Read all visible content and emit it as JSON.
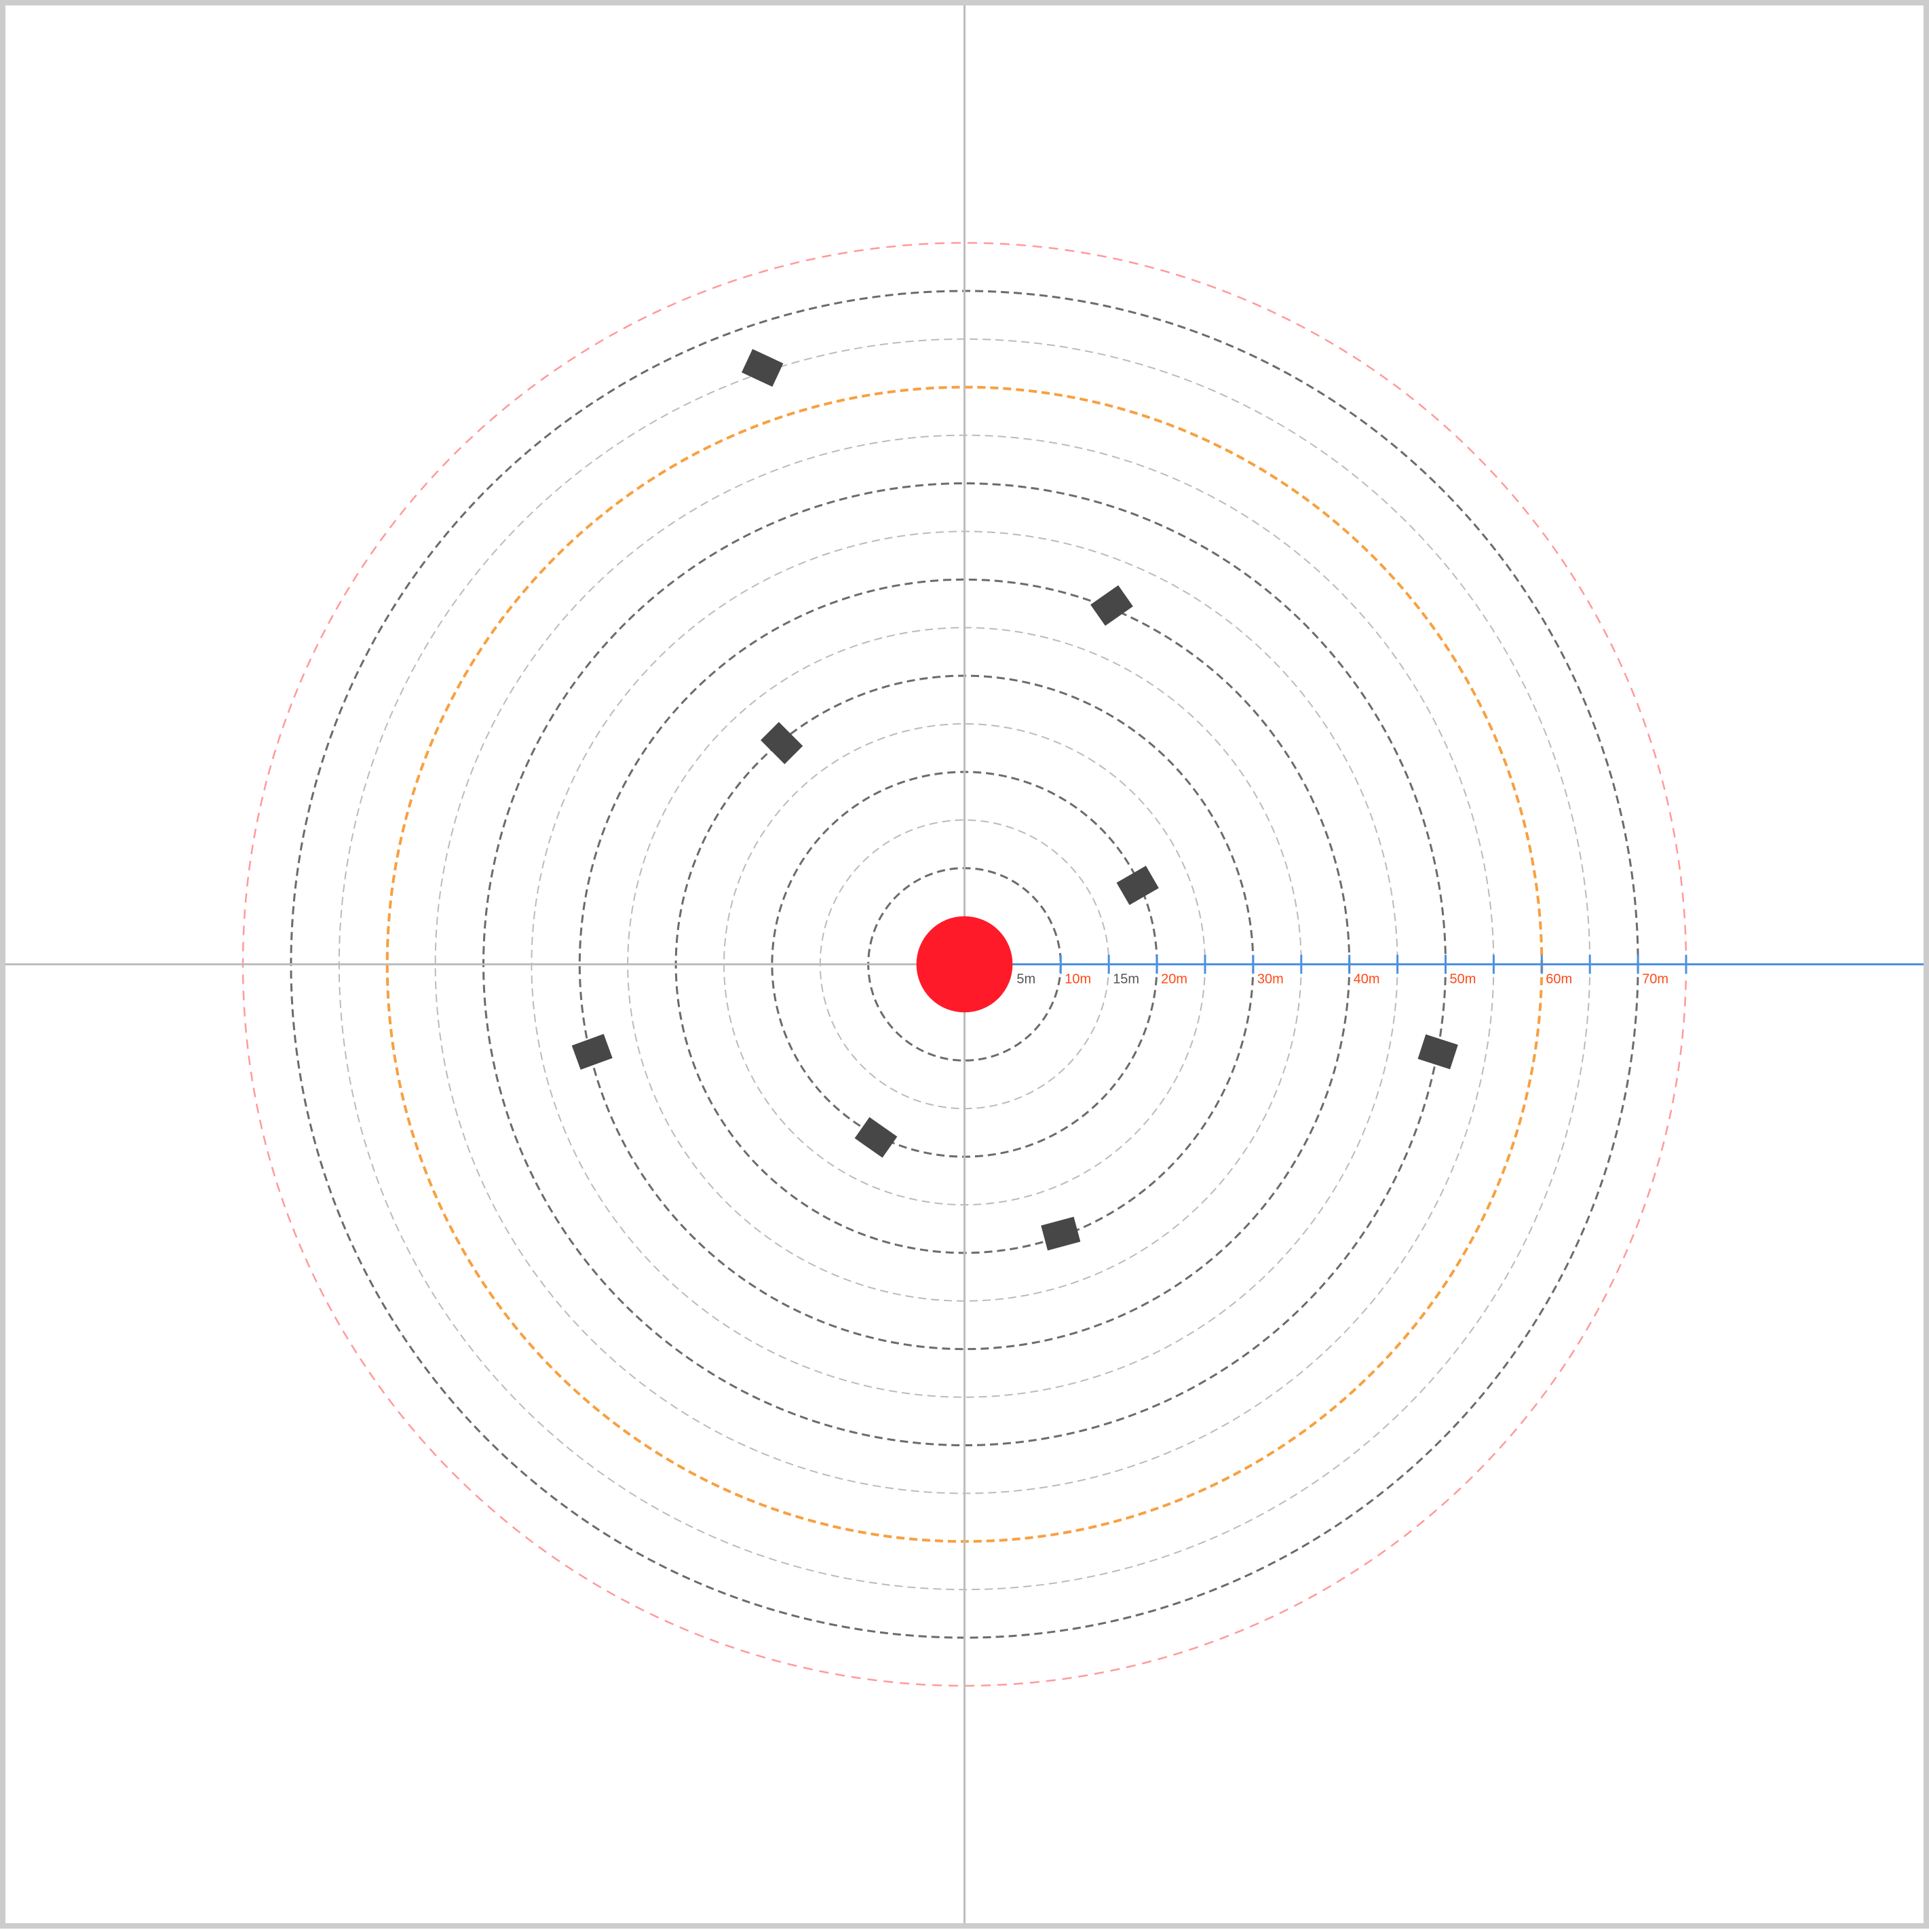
{
  "colors": {
    "background": "#ffffff",
    "frame": "#cccccc",
    "crosshair": "#bdbdbd",
    "ring_major": "#6b6b6b",
    "ring_minor": "#bbbbbb",
    "ring_highlight": "#f7a040",
    "ring_outer": "#ff9a9a",
    "center": "#ff1a2a",
    "scale_line": "#4a90e2",
    "label_red": "#ff4a1a",
    "label_gray": "#555555",
    "objects": "#474747"
  },
  "center_marker": {
    "radius_m": 5,
    "icon": "red-circle"
  },
  "rings": [
    {
      "r": 10,
      "style": "major"
    },
    {
      "r": 15,
      "style": "minor"
    },
    {
      "r": 20,
      "style": "major"
    },
    {
      "r": 25,
      "style": "minor"
    },
    {
      "r": 30,
      "style": "major"
    },
    {
      "r": 35,
      "style": "minor"
    },
    {
      "r": 40,
      "style": "major"
    },
    {
      "r": 45,
      "style": "minor"
    },
    {
      "r": 50,
      "style": "major"
    },
    {
      "r": 55,
      "style": "minor"
    },
    {
      "r": 60,
      "style": "highlight"
    },
    {
      "r": 65,
      "style": "minor"
    },
    {
      "r": 70,
      "style": "major"
    },
    {
      "r": 75,
      "style": "outer"
    }
  ],
  "scale": {
    "ticks_m": [
      10,
      15,
      20,
      25,
      30,
      35,
      40,
      45,
      50,
      55,
      60,
      65,
      70,
      75
    ],
    "labels": [
      {
        "m": 5,
        "text": "5m",
        "color": "gray"
      },
      {
        "m": 10,
        "text": "10m",
        "color": "red"
      },
      {
        "m": 15,
        "text": "15m",
        "color": "gray"
      },
      {
        "m": 20,
        "text": "20m",
        "color": "red"
      },
      {
        "m": 30,
        "text": "30m",
        "color": "red"
      },
      {
        "m": 40,
        "text": "40m",
        "color": "red"
      },
      {
        "m": 50,
        "text": "50m",
        "color": "red"
      },
      {
        "m": 60,
        "text": "60m",
        "color": "red"
      },
      {
        "m": 70,
        "text": "70m",
        "color": "red"
      }
    ]
  },
  "objects": [
    {
      "x": 18,
      "y": 8.2,
      "rotation": -30
    },
    {
      "x": 15.3,
      "y": 37.3,
      "rotation": -35
    },
    {
      "x": -19,
      "y": 23,
      "rotation": 45
    },
    {
      "x": -21,
      "y": 62,
      "rotation": 25
    },
    {
      "x": -9.2,
      "y": -18,
      "rotation": 35
    },
    {
      "x": 10,
      "y": -28,
      "rotation": -15
    },
    {
      "x": -38.7,
      "y": -9.1,
      "rotation": -20
    },
    {
      "x": 49.2,
      "y": -9.1,
      "rotation": 18
    }
  ]
}
